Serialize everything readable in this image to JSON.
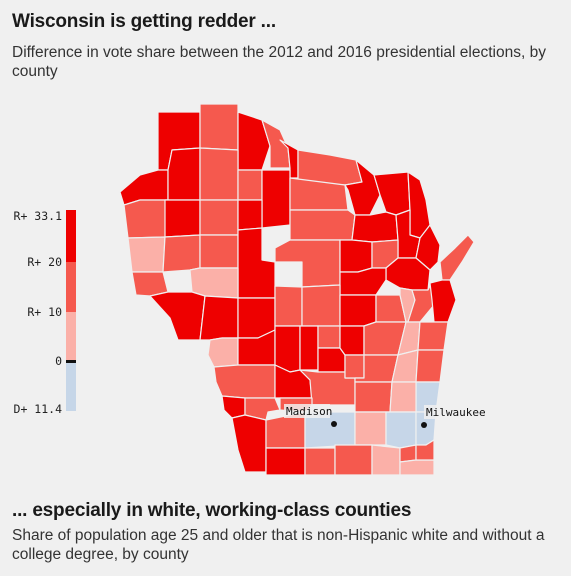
{
  "header": {
    "title": "Wisconsin is getting redder ...",
    "subtitle": "Difference in vote share between the 2012 and 2016 presidential elections, by county"
  },
  "legend": {
    "labels": [
      "R+ 33.1",
      "R+ 20",
      "R+ 10",
      "0",
      "D+ 11.4"
    ],
    "colors": [
      "#ee0000",
      "#f5594e",
      "#fbb0a8",
      "#111111",
      "#c6d6e8"
    ]
  },
  "map": {
    "state": "Wisconsin",
    "cities": [
      {
        "name": "Madison"
      },
      {
        "name": "Milwaukee"
      }
    ],
    "colors": {
      "dark_red": "#ee0000",
      "mid_red": "#f5594e",
      "light_red": "#fbb0a8",
      "blue": "#c6d6e8"
    }
  },
  "section2": {
    "title": "... especially in white, working-class counties",
    "subtitle": "Share of population age 25 and older that is non-Hispanic white and without a college degree, by county"
  }
}
